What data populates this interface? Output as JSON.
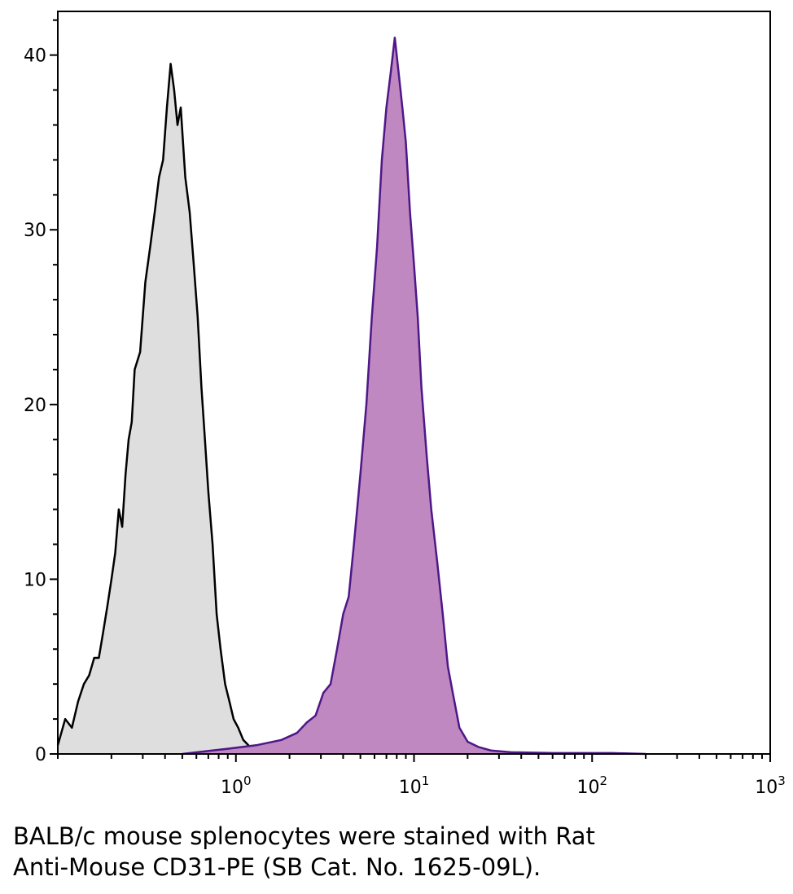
{
  "chart_data": {
    "type": "area",
    "x_scale": "log",
    "xlim": [
      0.1,
      1000
    ],
    "ylim": [
      0,
      42.5
    ],
    "x_ticks": [
      {
        "value": 1,
        "base": "10",
        "exp": "0"
      },
      {
        "value": 10,
        "base": "10",
        "exp": "1"
      },
      {
        "value": 100,
        "base": "10",
        "exp": "2"
      },
      {
        "value": 1000,
        "base": "10",
        "exp": "3"
      }
    ],
    "y_ticks": [
      0,
      10,
      20,
      30,
      40
    ],
    "series": [
      {
        "fill": "#dedede",
        "stroke": "#000000",
        "points": [
          [
            0.1,
            0.5
          ],
          [
            0.11,
            2
          ],
          [
            0.12,
            1.5
          ],
          [
            0.13,
            3
          ],
          [
            0.14,
            4
          ],
          [
            0.15,
            4.5
          ],
          [
            0.16,
            5.5
          ],
          [
            0.17,
            5.5
          ],
          [
            0.18,
            7
          ],
          [
            0.19,
            8.5
          ],
          [
            0.2,
            10
          ],
          [
            0.21,
            11.5
          ],
          [
            0.22,
            14
          ],
          [
            0.23,
            13
          ],
          [
            0.24,
            16
          ],
          [
            0.25,
            18
          ],
          [
            0.26,
            19
          ],
          [
            0.27,
            22
          ],
          [
            0.29,
            23
          ],
          [
            0.31,
            27
          ],
          [
            0.33,
            29
          ],
          [
            0.35,
            31
          ],
          [
            0.37,
            33
          ],
          [
            0.39,
            34
          ],
          [
            0.41,
            37
          ],
          [
            0.43,
            39.5
          ],
          [
            0.45,
            38
          ],
          [
            0.47,
            36
          ],
          [
            0.49,
            37
          ],
          [
            0.52,
            33
          ],
          [
            0.55,
            31
          ],
          [
            0.58,
            28
          ],
          [
            0.61,
            25
          ],
          [
            0.64,
            21
          ],
          [
            0.67,
            18
          ],
          [
            0.7,
            15
          ],
          [
            0.74,
            12
          ],
          [
            0.78,
            8
          ],
          [
            0.82,
            6
          ],
          [
            0.87,
            4
          ],
          [
            0.92,
            3
          ],
          [
            0.97,
            2
          ],
          [
            1.03,
            1.5
          ],
          [
            1.1,
            0.8
          ],
          [
            1.2,
            0.4
          ],
          [
            1.3,
            0.2
          ],
          [
            1.5,
            0.1
          ],
          [
            2,
            0
          ]
        ]
      },
      {
        "fill": "#bf88c0",
        "stroke": "#4e1788",
        "points": [
          [
            0.5,
            0
          ],
          [
            0.9,
            0.3
          ],
          [
            1.3,
            0.5
          ],
          [
            1.8,
            0.8
          ],
          [
            2.2,
            1.2
          ],
          [
            2.5,
            1.8
          ],
          [
            2.8,
            2.2
          ],
          [
            3.1,
            3.5
          ],
          [
            3.4,
            4
          ],
          [
            3.7,
            6
          ],
          [
            4,
            8
          ],
          [
            4.3,
            9
          ],
          [
            4.6,
            12
          ],
          [
            5,
            16
          ],
          [
            5.4,
            20
          ],
          [
            5.8,
            25
          ],
          [
            6.2,
            29
          ],
          [
            6.6,
            34
          ],
          [
            7,
            37
          ],
          [
            7.4,
            39
          ],
          [
            7.8,
            41
          ],
          [
            8.2,
            39
          ],
          [
            8.6,
            37
          ],
          [
            9,
            35
          ],
          [
            9.5,
            31
          ],
          [
            10,
            28
          ],
          [
            10.5,
            25
          ],
          [
            11,
            21
          ],
          [
            11.8,
            17
          ],
          [
            12.5,
            14
          ],
          [
            13.5,
            11
          ],
          [
            14.5,
            8
          ],
          [
            15.5,
            5
          ],
          [
            16.5,
            3.5
          ],
          [
            18,
            1.5
          ],
          [
            20,
            0.7
          ],
          [
            23,
            0.4
          ],
          [
            27,
            0.2
          ],
          [
            35,
            0.1
          ],
          [
            60,
            0.05
          ],
          [
            130,
            0.05
          ],
          [
            200,
            0
          ]
        ]
      }
    ]
  },
  "caption": {
    "line1": "BALB/c mouse splenocytes were stained with Rat",
    "line2": "Anti-Mouse CD31-PE (SB Cat. No. 1625-09L)."
  }
}
